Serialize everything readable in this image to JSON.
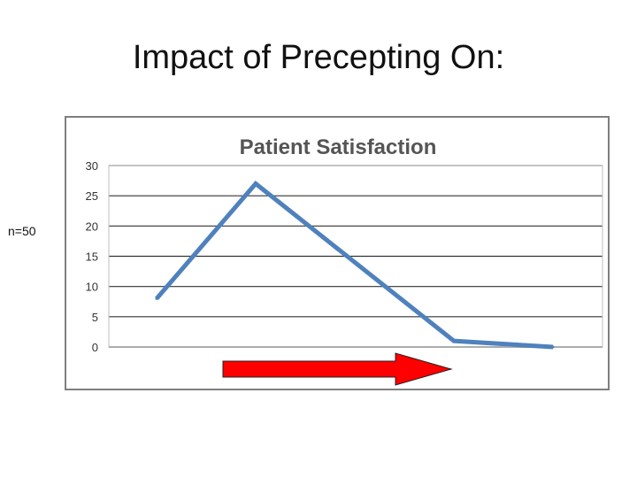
{
  "slide": {
    "title": "Impact of Precepting On:",
    "sample_size": "n=50"
  },
  "colors": {
    "line": "#4f81bd",
    "arrow": "#ff0000",
    "grid": "#333333"
  },
  "chart_data": {
    "type": "line",
    "title": "Patient Satisfaction",
    "xlabel": "",
    "ylabel": "",
    "ylim": [
      0,
      30
    ],
    "yticks": [
      0,
      5,
      10,
      15,
      20,
      25,
      30
    ],
    "ytick_labels": [
      "0",
      "5",
      "10",
      "15",
      "20",
      "25",
      "30"
    ],
    "categories": [
      "",
      "",
      "",
      "",
      ""
    ],
    "series": [
      {
        "name": "Patient Satisfaction",
        "values": [
          8,
          27,
          14,
          1,
          0
        ]
      }
    ],
    "annotations": [
      {
        "type": "arrow",
        "direction": "right",
        "color": "red"
      }
    ],
    "grid": true
  }
}
